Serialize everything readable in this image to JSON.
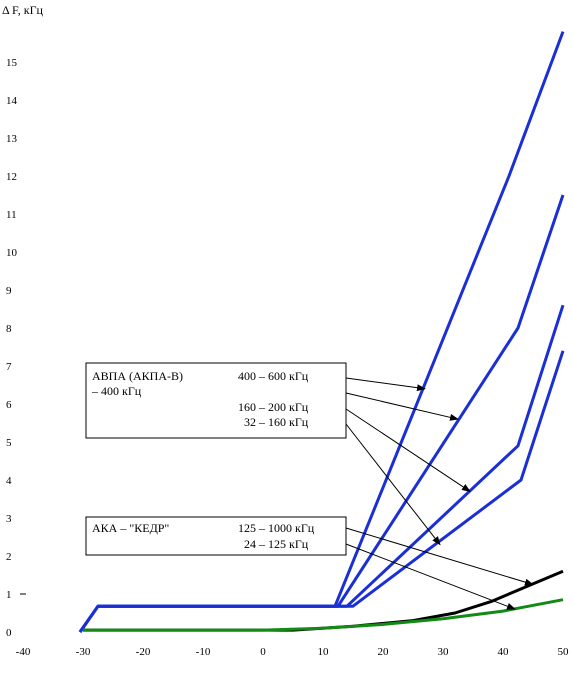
{
  "chart_data": {
    "type": "line",
    "title": "",
    "xlabel": "",
    "ylabel": "Δ F, кГц",
    "xlim": [
      -40,
      50
    ],
    "ylim": [
      0,
      16
    ],
    "x_ticks": [
      "-40",
      "-30",
      "-20",
      "-10",
      "0",
      "10",
      "20",
      "30",
      "40",
      "50"
    ],
    "y_ticks": [
      "0",
      "1",
      "2",
      "3",
      "4",
      "5",
      "6",
      "7",
      "8",
      "9",
      "10",
      "11",
      "12",
      "13",
      "14",
      "15"
    ],
    "grid": false,
    "colors": {
      "blue": "#1a2fd6",
      "black": "#000000",
      "green": "#138a13"
    },
    "series": [
      {
        "color": "blue",
        "x": [
          -30.5,
          -27.5,
          12,
          41,
          50
        ],
        "y": [
          0,
          0.68,
          0.68,
          12.0,
          15.8
        ]
      },
      {
        "color": "blue",
        "x": [
          -30.5,
          -27.5,
          12.5,
          42.5,
          50
        ],
        "y": [
          0,
          0.68,
          0.68,
          8.0,
          11.5
        ]
      },
      {
        "color": "blue",
        "x": [
          -30.5,
          -27.5,
          14,
          42.5,
          50
        ],
        "y": [
          0,
          0.68,
          0.68,
          4.9,
          8.6
        ]
      },
      {
        "color": "blue",
        "x": [
          -30.5,
          -27.5,
          15,
          43,
          50
        ],
        "y": [
          0,
          0.68,
          0.68,
          4.0,
          7.4
        ]
      },
      {
        "color": "black",
        "x": [
          -30,
          0,
          5,
          15,
          25,
          32,
          38,
          44,
          50
        ],
        "y": [
          0.05,
          0.05,
          0.05,
          0.15,
          0.3,
          0.5,
          0.8,
          1.2,
          1.6
        ]
      },
      {
        "color": "green",
        "x": [
          -30,
          0,
          10,
          20,
          30,
          40,
          50
        ],
        "y": [
          0.05,
          0.05,
          0.1,
          0.2,
          0.35,
          0.55,
          0.85
        ]
      }
    ],
    "annotations": [
      {
        "group": "avpa",
        "title": "АВПА (АКПА-В)",
        "subtitle": "– 400 кГц",
        "labels": [
          "400 – 600 кГц",
          "160 – 200 кГц",
          "32 – 160 кГц"
        ],
        "arrow_targets": [
          {
            "x": 27,
            "y": 6.4
          },
          {
            "x": 32.5,
            "y": 5.6
          },
          {
            "x": 34.5,
            "y": 3.7
          },
          {
            "x": 29.5,
            "y": 2.3
          }
        ]
      },
      {
        "group": "aka",
        "title": "АКА – \"КЕДР\"",
        "labels": [
          "125 – 1000 кГц",
          "24 – 125 кГц"
        ],
        "arrow_targets": [
          {
            "x": 45,
            "y": 1.25
          },
          {
            "x": 42,
            "y": 0.6
          }
        ]
      }
    ]
  }
}
